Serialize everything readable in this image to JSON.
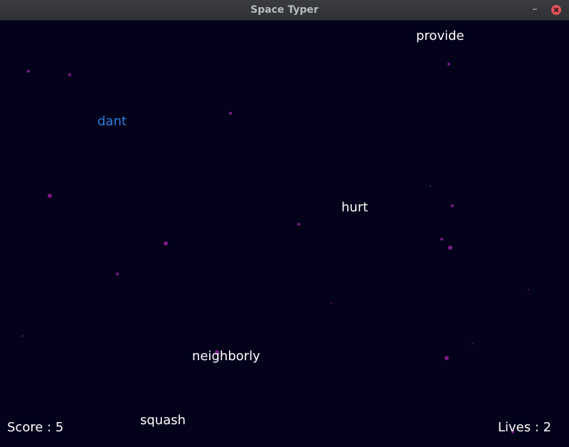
{
  "window": {
    "title": "Space Typer",
    "minimize_glyph": "–",
    "close_icon": "close-icon"
  },
  "colors": {
    "background": "#03021a",
    "word": "#ffffff",
    "active_word": "#2a7fe0",
    "star": "#7e1a8a",
    "close_button": "#e0535a"
  },
  "words": {
    "provide": "provide",
    "dant": "dant",
    "hurt": "hurt",
    "neighborly": "neighborly",
    "squash": "squash"
  },
  "hud": {
    "score": "Score : 5",
    "lives": "Lives : 2"
  }
}
